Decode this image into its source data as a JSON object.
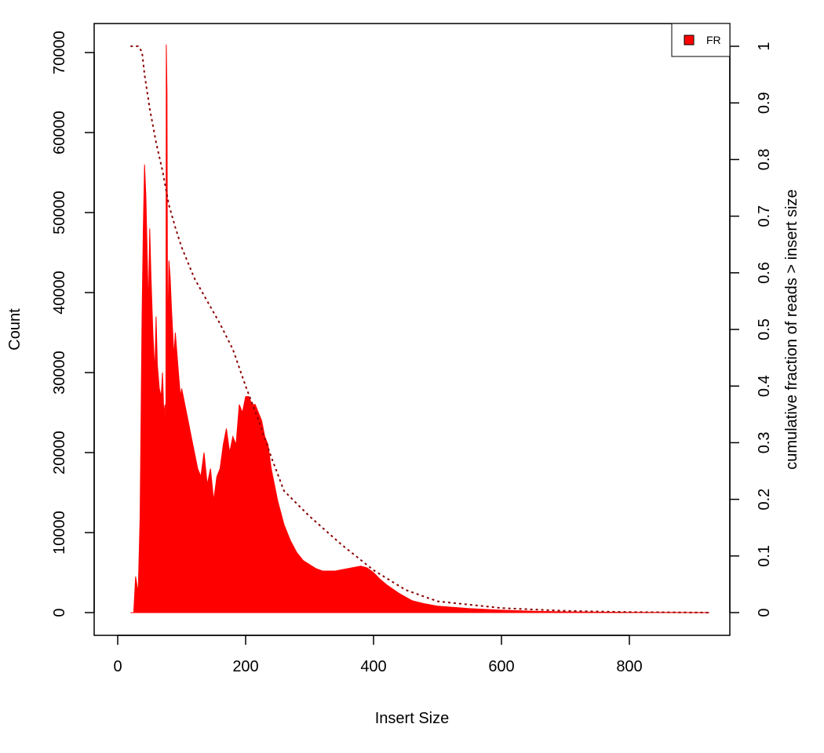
{
  "chart_data": {
    "type": "bar",
    "xlabel": "Insert Size",
    "ylabel": "Count",
    "y2label": "cumulative fraction of reads > insert size",
    "xlim": [
      0,
      950
    ],
    "ylim": [
      0,
      73000
    ],
    "y2lim": [
      0,
      1.04
    ],
    "x_ticks": [
      0,
      200,
      400,
      600,
      800
    ],
    "y_ticks": [
      0,
      10000,
      20000,
      30000,
      40000,
      50000,
      60000,
      70000
    ],
    "y2_ticks": [
      0,
      0.1,
      0.2,
      0.3,
      0.4,
      0.5,
      0.6,
      0.7,
      0.8,
      0.9,
      1
    ],
    "y2_tick_labels": [
      "0",
      "0.1",
      "0.2",
      "0.3",
      "0.4",
      "0.5",
      "0.6",
      "0.7",
      "0.8",
      "0.9",
      "1"
    ],
    "legend": {
      "position": "top-right",
      "entries": [
        {
          "label": "FR",
          "color": "#ff0000"
        }
      ]
    },
    "series": [
      {
        "name": "FR",
        "type": "histogram",
        "color": "#ff0000",
        "x": [
          20,
          25,
          28,
          32,
          35,
          38,
          40,
          42,
          44,
          46,
          48,
          50,
          52,
          55,
          58,
          60,
          62,
          65,
          68,
          70,
          72,
          74,
          75,
          76,
          77,
          78,
          80,
          82,
          84,
          86,
          88,
          90,
          92,
          95,
          98,
          100,
          105,
          110,
          115,
          120,
          125,
          130,
          135,
          140,
          145,
          150,
          155,
          160,
          165,
          170,
          175,
          180,
          185,
          190,
          195,
          200,
          205,
          210,
          215,
          220,
          225,
          230,
          235,
          240,
          250,
          260,
          270,
          280,
          290,
          300,
          310,
          320,
          340,
          360,
          380,
          390,
          400,
          410,
          420,
          440,
          460,
          480,
          500,
          550,
          600,
          650,
          700,
          750,
          800,
          850,
          900,
          925
        ],
        "values": [
          0,
          0,
          4500,
          2500,
          12000,
          37000,
          48000,
          56000,
          52000,
          45000,
          38000,
          48000,
          42000,
          35000,
          30000,
          37000,
          31000,
          28000,
          27000,
          30000,
          25000,
          26000,
          0,
          71000,
          65000,
          33000,
          44000,
          42000,
          38000,
          35000,
          32000,
          35000,
          33000,
          30000,
          27000,
          28000,
          26000,
          24000,
          22000,
          20000,
          18000,
          17000,
          20000,
          16000,
          18000,
          14000,
          17000,
          18000,
          21000,
          23000,
          20000,
          22000,
          21000,
          26000,
          25000,
          27000,
          27000,
          26000,
          26000,
          25000,
          24000,
          22000,
          21000,
          18000,
          14000,
          11000,
          9000,
          7500,
          6500,
          6000,
          5500,
          5200,
          5200,
          5500,
          5800,
          5600,
          5000,
          4200,
          3500,
          2400,
          1500,
          1100,
          800,
          500,
          300,
          180,
          100,
          60,
          40,
          25,
          10,
          0
        ]
      },
      {
        "name": "cumulative",
        "type": "line",
        "style": "dotted",
        "color": "#8b0000",
        "x": [
          20,
          32,
          38,
          42,
          50,
          60,
          70,
          80,
          90,
          100,
          120,
          140,
          160,
          180,
          200,
          220,
          240,
          260,
          300,
          350,
          400,
          450,
          500,
          600,
          700,
          800,
          925
        ],
        "values": [
          1.0,
          1.0,
          0.99,
          0.95,
          0.89,
          0.83,
          0.78,
          0.72,
          0.68,
          0.645,
          0.59,
          0.55,
          0.51,
          0.465,
          0.4,
          0.34,
          0.275,
          0.215,
          0.17,
          0.12,
          0.075,
          0.04,
          0.02,
          0.008,
          0.003,
          0.001,
          0
        ]
      }
    ]
  }
}
